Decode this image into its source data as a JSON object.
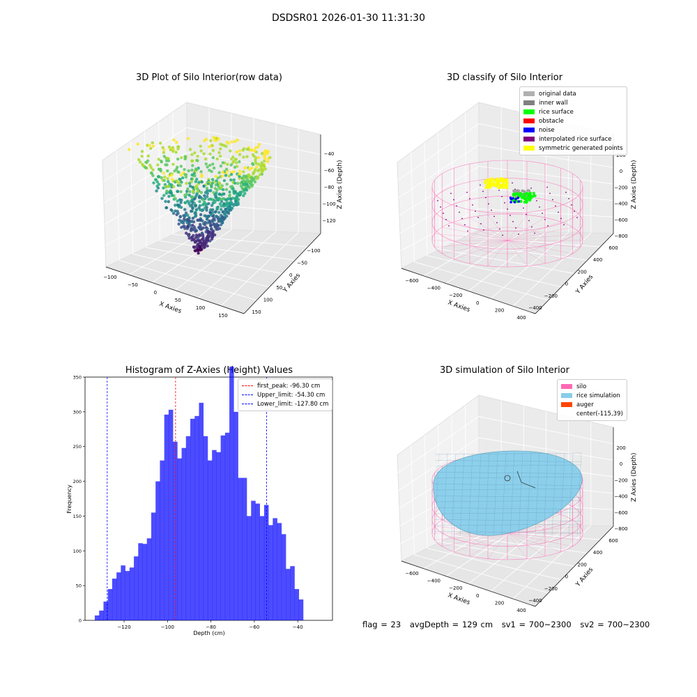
{
  "figure": {
    "suptitle": "DSDSR01 2026-01-30 11:31:30"
  },
  "panels": {
    "raw": {
      "title": "3D Plot of Silo Interior(row data)",
      "xlabel": "X Axies",
      "ylabel": "Y Axies",
      "zlabel": "Z Axies (Depth)",
      "xticks": [
        "−100",
        "−50",
        "0",
        "50",
        "100",
        "150"
      ],
      "yticks": [
        "−100",
        "−50",
        "0",
        "50",
        "100",
        "150"
      ],
      "zticks": [
        "−40",
        "−60",
        "−80",
        "−100",
        "−120"
      ]
    },
    "classify": {
      "title": "3D classify of Silo Interior",
      "xlabel": "X Axies",
      "ylabel": "Y Axies",
      "zlabel": "Z Axies (Depth)",
      "xticks": [
        "−600",
        "−400",
        "−200",
        "0",
        "200",
        "400"
      ],
      "yticks": [
        "−400",
        "−200",
        "0",
        "200",
        "400",
        "600"
      ],
      "zticks": [
        "200",
        "0",
        "−200",
        "−400",
        "−600",
        "−800"
      ],
      "legend": [
        {
          "label": "original data",
          "color": "#b0b0b0"
        },
        {
          "label": "inner wall",
          "color": "#808080"
        },
        {
          "label": "rice surface",
          "color": "#00ff00"
        },
        {
          "label": "obstacle",
          "color": "#ff0000"
        },
        {
          "label": "noise",
          "color": "#0000ff"
        },
        {
          "label": "interpolated rice surface",
          "color": "#800080"
        },
        {
          "label": "symmetric generated points",
          "color": "#ffff00"
        }
      ]
    },
    "histogram": {
      "title": "Histogram of Z-Axies (Height) Values",
      "xlabel": "Depth (cm)",
      "ylabel": "Frequency",
      "legend": [
        {
          "label": "first_peak: -96.30 cm",
          "color": "#ff0000"
        },
        {
          "label": "Upper_limit: -54.30 cm",
          "color": "#0000ff"
        },
        {
          "label": "Lower_limit: -127.80 cm",
          "color": "#0000ff"
        }
      ]
    },
    "simulation": {
      "title": "3D simulation of Silo Interior",
      "xlabel": "X Axies",
      "ylabel": "Y Axies",
      "zlabel": "Z Axies (Depth)",
      "xticks": [
        "−600",
        "−400",
        "−200",
        "0",
        "200",
        "400"
      ],
      "yticks": [
        "−400",
        "−200",
        "0",
        "200",
        "400",
        "600"
      ],
      "zticks": [
        "200",
        "0",
        "−200",
        "−400",
        "−600",
        "−800"
      ],
      "legend": [
        {
          "label": "silo",
          "color": "#ff69b4"
        },
        {
          "label": "rice simulation",
          "color": "#87ceeb"
        },
        {
          "label": "auger",
          "color": "#ff4500"
        },
        {
          "label": "center(-115,39)",
          "color": ""
        }
      ]
    }
  },
  "footer": {
    "flag": "flag = 23",
    "avg_depth": "avgDepth = 129 cm",
    "sv1": "sv1 = 700~2300",
    "sv2": "sv2 = 700~2300"
  },
  "chart_data": [
    {
      "type": "scatter",
      "title": "3D Plot of Silo Interior(row data)",
      "xlabel": "X Axies",
      "ylabel": "Y Axies",
      "zlabel": "Z Axies (Depth)",
      "xlim": [
        -110,
        170
      ],
      "ylim": [
        -110,
        170
      ],
      "zlim": [
        -135,
        -30
      ],
      "colormap": "viridis"
    },
    {
      "type": "scatter",
      "title": "3D classify of Silo Interior",
      "xlabel": "X Axies",
      "ylabel": "Y Axies",
      "zlabel": "Z Axies (Depth)",
      "xlim": [
        -700,
        450
      ],
      "ylim": [
        -450,
        650
      ],
      "zlim": [
        -800,
        200
      ],
      "series": [
        {
          "name": "original data"
        },
        {
          "name": "inner wall"
        },
        {
          "name": "rice surface"
        },
        {
          "name": "obstacle"
        },
        {
          "name": "noise"
        },
        {
          "name": "interpolated rice surface"
        },
        {
          "name": "symmetric generated points"
        }
      ]
    },
    {
      "type": "bar",
      "title": "Histogram of Z-Axies (Height) Values",
      "xlabel": "Depth (cm)",
      "ylabel": "Frequency",
      "xlim": [
        -138,
        -24
      ],
      "ylim": [
        0,
        350
      ],
      "xticks": [
        -120,
        -100,
        -80,
        -60,
        -40
      ],
      "yticks": [
        0,
        50,
        100,
        150,
        200,
        250,
        300,
        350
      ],
      "bin_start": -133.5,
      "bin_width": 2.0,
      "values": [
        7,
        14,
        27,
        45,
        60,
        69,
        79,
        71,
        76,
        92,
        111,
        110,
        118,
        155,
        200,
        230,
        296,
        303,
        257,
        233,
        248,
        265,
        290,
        294,
        313,
        265,
        230,
        245,
        242,
        266,
        270,
        365,
        300,
        205,
        205,
        150,
        172,
        168,
        150,
        166,
        137,
        147,
        140,
        124,
        74,
        78,
        45,
        30
      ],
      "vlines": [
        {
          "name": "first_peak: -96.30 cm",
          "x": -96.3,
          "color": "#ff0000"
        },
        {
          "name": "Upper_limit: -54.30 cm",
          "x": -54.3,
          "color": "#0000ff"
        },
        {
          "name": "Lower_limit: -127.80 cm",
          "x": -127.8,
          "color": "#0000ff"
        }
      ],
      "legend": "top-right"
    },
    {
      "type": "scatter",
      "title": "3D simulation of Silo Interior",
      "xlabel": "X Axies",
      "ylabel": "Y Axies",
      "zlabel": "Z Axies (Depth)",
      "xlim": [
        -700,
        450
      ],
      "ylim": [
        -450,
        650
      ],
      "zlim": [
        -800,
        200
      ],
      "series": [
        {
          "name": "silo"
        },
        {
          "name": "rice simulation"
        },
        {
          "name": "auger"
        }
      ]
    }
  ]
}
